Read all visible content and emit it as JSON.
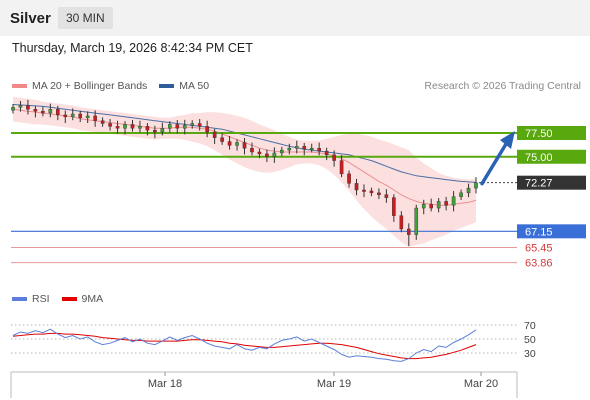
{
  "header": {
    "instrument": "Silver",
    "timeframe": "30 MIN"
  },
  "datetime": "Thursday, March 19, 2026 8:42:34 PM CET",
  "legend": [
    {
      "label": "MA 20 + Bollinger Bands",
      "color": "#f08a8a"
    },
    {
      "label": "MA 50",
      "color": "#2e5d9a"
    }
  ],
  "credit": "Research © 2026 Trading Central",
  "rsi_legend": [
    {
      "label": "RSI",
      "color": "#5b7fd8"
    },
    {
      "label": "9MA",
      "color": "#e00000"
    }
  ],
  "chart_data": [
    {
      "type": "candlestick",
      "x_labels": [
        "Mar 18",
        "Mar 19",
        "Mar 20"
      ],
      "ylim": [
        61.5,
        81.5
      ],
      "last_price": 72.27,
      "targets": [
        77.5,
        75.0
      ],
      "support": 67.15,
      "lower_levels": [
        65.45,
        63.86
      ],
      "close_path": [
        80.2,
        80.4,
        80.0,
        79.8,
        79.6,
        80.0,
        79.4,
        79.2,
        79.5,
        79.1,
        79.3,
        78.8,
        78.5,
        78.2,
        78.0,
        78.4,
        78.0,
        78.2,
        77.8,
        77.6,
        78.0,
        78.4,
        78.0,
        78.3,
        78.5,
        78.2,
        77.6,
        77.0,
        76.6,
        76.2,
        76.5,
        75.9,
        75.5,
        75.3,
        75.0,
        75.4,
        75.7,
        75.9,
        76.1,
        75.8,
        75.9,
        75.6,
        75.2,
        74.6,
        73.2,
        72.2,
        71.5,
        71.4,
        71.2,
        71.0,
        70.7,
        68.8,
        67.4,
        66.8,
        69.6,
        70.0,
        69.6,
        70.3,
        69.9,
        70.8,
        71.2,
        71.7,
        72.27
      ],
      "ma20": [
        80.0,
        79.9,
        79.8,
        79.7,
        79.6,
        79.5,
        79.4,
        79.3,
        79.2,
        79.0,
        78.9,
        78.8,
        78.7,
        78.6,
        78.5,
        78.4,
        78.3,
        78.2,
        78.1,
        78.0,
        78.0,
        78.0,
        78.1,
        78.1,
        78.1,
        78.0,
        77.9,
        77.7,
        77.4,
        77.1,
        76.8,
        76.5,
        76.2,
        75.9,
        75.7,
        75.6,
        75.5,
        75.5,
        75.5,
        75.5,
        75.5,
        75.4,
        75.3,
        75.1,
        74.8,
        74.4,
        73.9,
        73.4,
        72.9,
        72.4,
        72.0,
        71.5,
        71.0,
        70.6,
        70.3,
        70.1,
        70.0,
        69.9,
        69.9,
        70.0,
        70.1,
        70.2,
        70.4
      ],
      "ma50": [
        80.5,
        80.45,
        80.4,
        80.35,
        80.3,
        80.2,
        80.1,
        80.0,
        79.9,
        79.8,
        79.7,
        79.6,
        79.5,
        79.4,
        79.3,
        79.2,
        79.1,
        79.0,
        78.9,
        78.8,
        78.7,
        78.6,
        78.5,
        78.4,
        78.3,
        78.2,
        78.1,
        78.0,
        77.9,
        77.7,
        77.5,
        77.3,
        77.1,
        76.9,
        76.7,
        76.5,
        76.3,
        76.1,
        75.95,
        75.8,
        75.7,
        75.6,
        75.5,
        75.4,
        75.3,
        75.2,
        75.0,
        74.8,
        74.6,
        74.3,
        74.0,
        73.7,
        73.4,
        73.2,
        73.0,
        72.9,
        72.8,
        72.7,
        72.6,
        72.5,
        72.4,
        72.35,
        72.3
      ],
      "bb_width": [
        1.3,
        1.3,
        1.3,
        1.3,
        1.2,
        1.2,
        1.2,
        1.2,
        1.2,
        1.2,
        1.2,
        1.2,
        1.2,
        1.2,
        1.2,
        1.2,
        1.2,
        1.2,
        1.2,
        1.2,
        1.1,
        1.1,
        1.2,
        1.3,
        1.5,
        1.6,
        1.8,
        2.0,
        2.2,
        2.4,
        2.5,
        2.6,
        2.6,
        2.5,
        2.4,
        2.2,
        1.9,
        1.6,
        1.3,
        1.2,
        1.2,
        1.3,
        1.6,
        2.0,
        2.5,
        3.0,
        3.5,
        3.9,
        4.2,
        4.4,
        4.6,
        4.8,
        5.0,
        5.1,
        4.6,
        4.2,
        3.8,
        3.4,
        3.1,
        2.8,
        2.6,
        2.4,
        2.3
      ]
    },
    {
      "type": "line",
      "name": "RSI",
      "ylim": [
        10,
        90
      ],
      "levels": [
        70,
        50,
        30
      ],
      "rsi": [
        55,
        60,
        58,
        62,
        59,
        64,
        57,
        52,
        55,
        50,
        53,
        46,
        42,
        44,
        48,
        52,
        46,
        50,
        44,
        42,
        47,
        53,
        48,
        52,
        55,
        50,
        44,
        40,
        38,
        36,
        42,
        36,
        34,
        38,
        36,
        43,
        48,
        50,
        53,
        47,
        50,
        45,
        40,
        35,
        28,
        24,
        26,
        25,
        24,
        22,
        21,
        19,
        18,
        22,
        30,
        35,
        32,
        40,
        38,
        45,
        50,
        56,
        63
      ],
      "ma9": [
        54,
        55,
        56,
        57,
        57,
        58,
        58,
        57,
        57,
        56,
        55,
        54,
        52,
        51,
        50,
        49,
        48,
        48,
        47,
        47,
        47,
        47,
        47,
        48,
        49,
        49,
        48,
        47,
        46,
        44,
        43,
        41,
        40,
        39,
        38,
        38,
        39,
        40,
        41,
        42,
        43,
        44,
        44,
        43,
        42,
        40,
        38,
        35,
        32,
        29,
        27,
        25,
        23,
        22,
        22,
        23,
        24,
        26,
        28,
        31,
        34,
        38,
        42
      ]
    }
  ]
}
